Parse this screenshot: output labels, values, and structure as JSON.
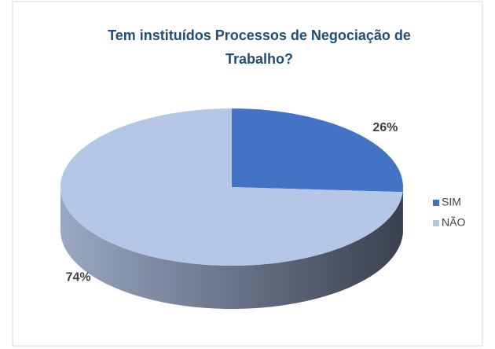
{
  "chart_data": {
    "type": "pie3d",
    "title": "Tem instituídos Processos de Negociação de Trabalho?",
    "categories": [
      "SIM",
      "NÃO"
    ],
    "values": [
      26,
      74
    ],
    "value_labels": [
      "26%",
      "74%"
    ],
    "colors": [
      "#4472c4",
      "#b4c7e7"
    ],
    "legend": "right"
  }
}
